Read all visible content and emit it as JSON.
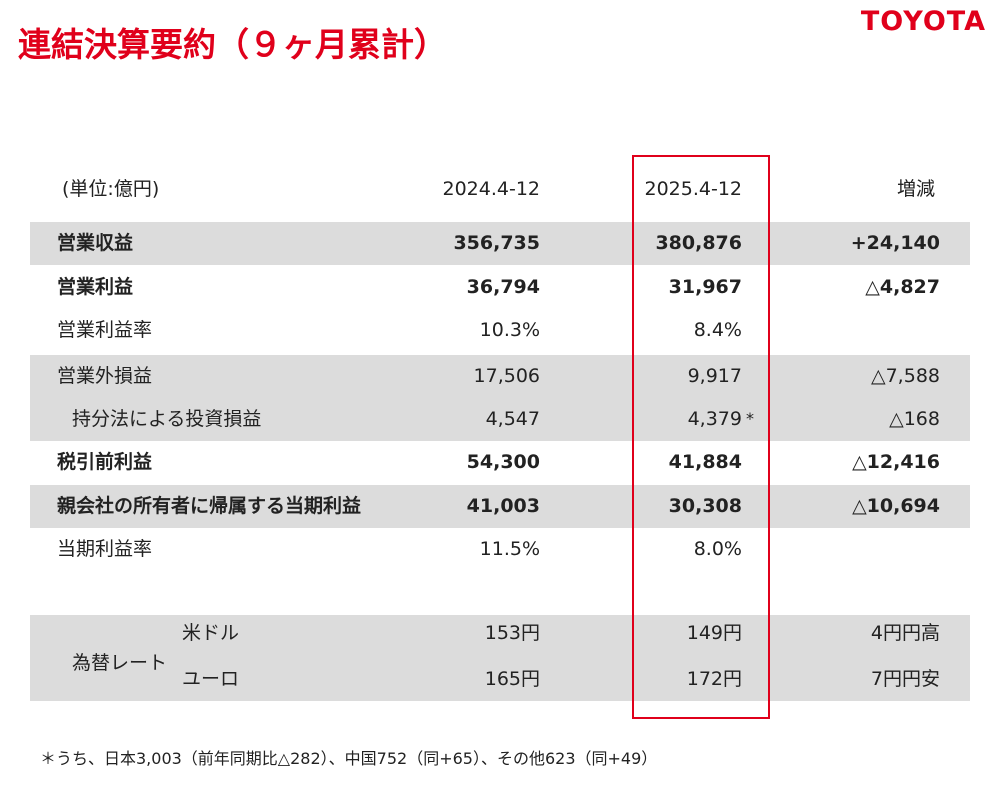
{
  "header": {
    "title": "連結決算要約（９ヶ月累計）",
    "logo": "TOYOTA"
  },
  "table": {
    "unit": "(単位:億円)",
    "columns": [
      "2024.4-12",
      "2025.4-12",
      "増減"
    ],
    "rows": [
      {
        "label": "営業収益",
        "cells": [
          "356,735",
          "380,876",
          "+24,140"
        ]
      },
      {
        "label": "営業利益",
        "cells": [
          "36,794",
          "31,967",
          "△4,827"
        ]
      },
      {
        "label": "営業利益率",
        "cells": [
          "10.3%",
          "8.4%",
          null
        ]
      },
      {
        "label": "営業外損益",
        "cells": [
          "17,506",
          "9,917",
          "△7,588"
        ]
      },
      {
        "label": "持分法による投資損益",
        "cells": [
          "4,547",
          "4,379",
          "△168"
        ],
        "note": "*"
      },
      {
        "label": "税引前利益",
        "cells": [
          "54,300",
          "41,884",
          "△12,416"
        ]
      },
      {
        "label": "親会社の所有者に帰属する当期利益",
        "cells": [
          "41,003",
          "30,308",
          "△10,694"
        ]
      },
      {
        "label": "当期利益率",
        "cells": [
          "11.5%",
          "8.0%",
          null
        ]
      }
    ]
  },
  "fx": {
    "label": "為替レート",
    "rows": [
      {
        "label": "米ドル",
        "cells": [
          "153円",
          "149円",
          "4円円高"
        ]
      },
      {
        "label": "ユーロ",
        "cells": [
          "165円",
          "172円",
          "7円円安"
        ]
      }
    ]
  },
  "footnote": "＊うち、日本3,003（前年同期比△282）、中国752（同+65）、その他623（同+49）"
}
